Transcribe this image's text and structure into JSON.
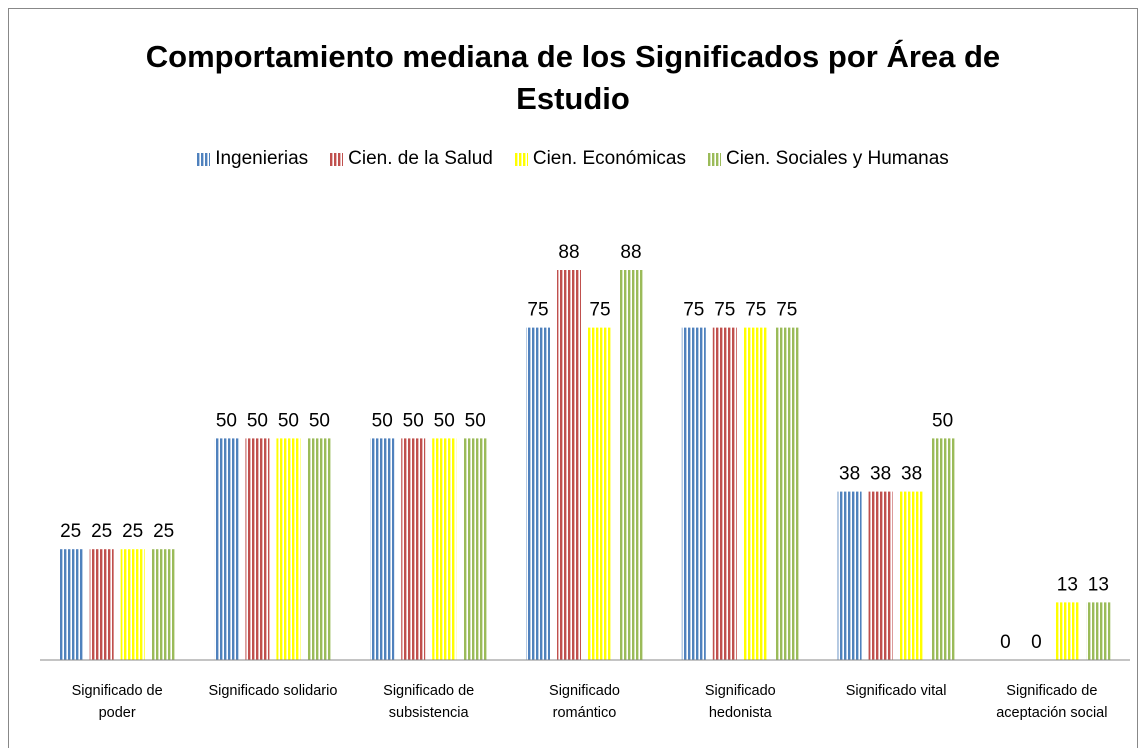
{
  "chart_data": {
    "type": "bar",
    "title": "Comportamiento mediana de los Significados por Área de Estudio",
    "categories": [
      "Significado de poder",
      "Significado solidario",
      "Significado de subsistencia",
      "Significado romántico",
      "Significado hedonista",
      "Significado vital",
      "Significado de aceptación social"
    ],
    "series": [
      {
        "name": "Ingenierias",
        "color": "#4f81bd",
        "values": [
          25,
          50,
          50,
          75,
          75,
          38,
          0
        ]
      },
      {
        "name": "Cien. de la Salud",
        "color": "#c0504d",
        "values": [
          25,
          50,
          50,
          88,
          75,
          38,
          0
        ]
      },
      {
        "name": "Cien. Económicas",
        "color": "#ffff00",
        "values": [
          25,
          50,
          50,
          75,
          75,
          38,
          13
        ]
      },
      {
        "name": "Cien. Sociales y Humanas",
        "color": "#9bbb59",
        "values": [
          25,
          50,
          50,
          88,
          75,
          50,
          13
        ]
      }
    ],
    "legend": "top"
  }
}
